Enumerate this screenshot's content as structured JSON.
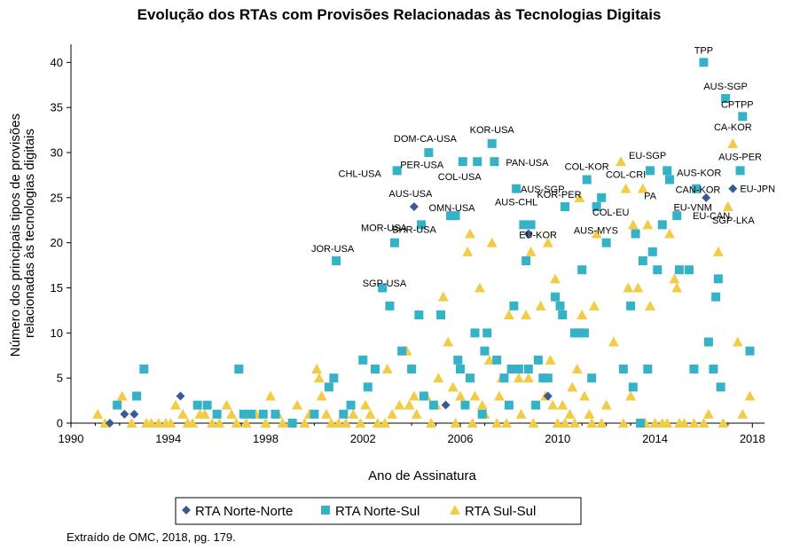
{
  "chart_data": {
    "type": "scatter",
    "title": "Evolução dos RTAs com Provisões Relacionadas às Tecnologias Digitais",
    "xlabel": "Ano de Assinatura",
    "ylabel_lines": [
      "Número dos principais tipos de provisões",
      "relacionadas às tecnologias digitais"
    ],
    "xlim": [
      1990,
      2018.5
    ],
    "ylim": [
      0,
      42
    ],
    "xticks": [
      "1990",
      "1994",
      "1998",
      "2002",
      "2006",
      "2010",
      "2014",
      "2018"
    ],
    "yticks": [
      "0",
      "5",
      "10",
      "15",
      "20",
      "25",
      "30",
      "35",
      "40"
    ],
    "grid": false,
    "legend_position": "bottom",
    "colors": {
      "Norte-Norte": "#3a5a95",
      "Norte-Sul": "#35b2c8",
      "Sul-Sul": "#f2cc47"
    },
    "series": [
      {
        "name": "RTA Norte-Norte",
        "marker": "diamond",
        "points": [
          [
            1991.6,
            0
          ],
          [
            1992.2,
            1
          ],
          [
            1992.6,
            1
          ],
          [
            1994.5,
            3
          ],
          [
            2004.1,
            24
          ],
          [
            2005.4,
            2
          ],
          [
            2008.8,
            21
          ],
          [
            2009.6,
            3
          ],
          [
            2016.1,
            25
          ],
          [
            2017.2,
            26
          ]
        ]
      },
      {
        "name": "RTA Norte-Sul",
        "marker": "square",
        "points": [
          [
            1991.9,
            2
          ],
          [
            1992.7,
            3
          ],
          [
            1993.0,
            6
          ],
          [
            1995.2,
            2
          ],
          [
            1995.6,
            2
          ],
          [
            1996.0,
            1
          ],
          [
            1996.9,
            6
          ],
          [
            1997.1,
            1
          ],
          [
            1997.4,
            1
          ],
          [
            1997.9,
            1
          ],
          [
            1998.4,
            1
          ],
          [
            1999.1,
            0
          ],
          [
            2000.0,
            1
          ],
          [
            2000.6,
            4
          ],
          [
            2000.8,
            5
          ],
          [
            2000.9,
            18
          ],
          [
            2001.2,
            1
          ],
          [
            2001.5,
            2
          ],
          [
            2002.0,
            7
          ],
          [
            2002.2,
            4
          ],
          [
            2002.5,
            6
          ],
          [
            2002.8,
            15
          ],
          [
            2003.1,
            13
          ],
          [
            2003.3,
            20
          ],
          [
            2003.4,
            28
          ],
          [
            2003.6,
            8
          ],
          [
            2004.0,
            6
          ],
          [
            2004.3,
            12
          ],
          [
            2004.4,
            22
          ],
          [
            2004.5,
            3
          ],
          [
            2004.7,
            30
          ],
          [
            2004.9,
            2
          ],
          [
            2005.2,
            12
          ],
          [
            2005.6,
            23
          ],
          [
            2005.8,
            23
          ],
          [
            2005.9,
            7
          ],
          [
            2006.0,
            6
          ],
          [
            2006.1,
            29
          ],
          [
            2006.2,
            2
          ],
          [
            2006.4,
            5
          ],
          [
            2006.6,
            10
          ],
          [
            2006.7,
            29
          ],
          [
            2006.9,
            1
          ],
          [
            2007.0,
            8
          ],
          [
            2007.1,
            10
          ],
          [
            2007.3,
            31
          ],
          [
            2007.4,
            29
          ],
          [
            2007.5,
            7
          ],
          [
            2007.8,
            5
          ],
          [
            2008.0,
            2
          ],
          [
            2008.1,
            6
          ],
          [
            2008.2,
            13
          ],
          [
            2008.3,
            26
          ],
          [
            2008.4,
            6
          ],
          [
            2008.6,
            22
          ],
          [
            2008.7,
            18
          ],
          [
            2008.8,
            6
          ],
          [
            2008.9,
            22
          ],
          [
            2009.1,
            2
          ],
          [
            2009.2,
            7
          ],
          [
            2009.4,
            5
          ],
          [
            2009.6,
            5
          ],
          [
            2009.9,
            14
          ],
          [
            2010.1,
            13
          ],
          [
            2010.2,
            12
          ],
          [
            2010.3,
            24
          ],
          [
            2010.7,
            10
          ],
          [
            2010.9,
            10
          ],
          [
            2011.0,
            17
          ],
          [
            2011.1,
            10
          ],
          [
            2011.2,
            27
          ],
          [
            2011.4,
            5
          ],
          [
            2011.6,
            24
          ],
          [
            2011.8,
            25
          ],
          [
            2012.0,
            20
          ],
          [
            2012.7,
            6
          ],
          [
            2013.0,
            13
          ],
          [
            2013.1,
            4
          ],
          [
            2013.2,
            21
          ],
          [
            2013.4,
            0
          ],
          [
            2013.5,
            18
          ],
          [
            2013.7,
            6
          ],
          [
            2013.8,
            28
          ],
          [
            2013.9,
            19
          ],
          [
            2014.1,
            17
          ],
          [
            2014.3,
            22
          ],
          [
            2014.5,
            28
          ],
          [
            2014.6,
            27
          ],
          [
            2014.9,
            23
          ],
          [
            2015.0,
            17
          ],
          [
            2015.4,
            17
          ],
          [
            2015.6,
            6
          ],
          [
            2015.7,
            26
          ],
          [
            2016.0,
            40
          ],
          [
            2016.2,
            9
          ],
          [
            2016.4,
            6
          ],
          [
            2016.5,
            14
          ],
          [
            2016.6,
            16
          ],
          [
            2016.7,
            4
          ],
          [
            2016.9,
            36
          ],
          [
            2017.6,
            34
          ],
          [
            2017.5,
            28
          ],
          [
            2017.9,
            8
          ]
        ]
      },
      {
        "name": "RTA Sul-Sul",
        "marker": "triangle",
        "points": [
          [
            1991.1,
            1
          ],
          [
            1991.4,
            0
          ],
          [
            1992.1,
            3
          ],
          [
            1992.5,
            0
          ],
          [
            1993.1,
            0
          ],
          [
            1993.3,
            0
          ],
          [
            1993.6,
            0
          ],
          [
            1993.9,
            0
          ],
          [
            1994.1,
            0
          ],
          [
            1994.3,
            2
          ],
          [
            1994.6,
            1
          ],
          [
            1994.8,
            0
          ],
          [
            1995.0,
            0
          ],
          [
            1995.3,
            1
          ],
          [
            1995.5,
            1
          ],
          [
            1995.8,
            0
          ],
          [
            1996.1,
            0
          ],
          [
            1996.4,
            2
          ],
          [
            1996.6,
            1
          ],
          [
            1996.8,
            0
          ],
          [
            1997.2,
            0
          ],
          [
            1997.6,
            1
          ],
          [
            1998.0,
            0
          ],
          [
            1998.2,
            3
          ],
          [
            1998.5,
            1
          ],
          [
            1998.7,
            0
          ],
          [
            1999.0,
            0
          ],
          [
            1999.3,
            2
          ],
          [
            1999.6,
            0
          ],
          [
            1999.8,
            1
          ],
          [
            2000.1,
            6
          ],
          [
            2000.2,
            5
          ],
          [
            2000.3,
            3
          ],
          [
            2000.5,
            1
          ],
          [
            2000.7,
            0
          ],
          [
            2001.0,
            0
          ],
          [
            2001.3,
            0
          ],
          [
            2001.6,
            1
          ],
          [
            2001.9,
            0
          ],
          [
            2002.1,
            2
          ],
          [
            2002.3,
            1
          ],
          [
            2002.6,
            0
          ],
          [
            2002.9,
            0
          ],
          [
            2003.0,
            6
          ],
          [
            2003.2,
            1
          ],
          [
            2003.5,
            2
          ],
          [
            2003.7,
            8
          ],
          [
            2003.8,
            8
          ],
          [
            2003.9,
            2
          ],
          [
            2004.1,
            3
          ],
          [
            2004.2,
            1
          ],
          [
            2004.6,
            3
          ],
          [
            2004.8,
            0
          ],
          [
            2005.0,
            2
          ],
          [
            2005.1,
            5
          ],
          [
            2005.3,
            14
          ],
          [
            2005.5,
            9
          ],
          [
            2005.7,
            4
          ],
          [
            2005.8,
            0
          ],
          [
            2006.0,
            3
          ],
          [
            2006.3,
            19
          ],
          [
            2006.4,
            21
          ],
          [
            2006.5,
            0
          ],
          [
            2006.6,
            3
          ],
          [
            2006.8,
            15
          ],
          [
            2006.9,
            2
          ],
          [
            2007.0,
            1
          ],
          [
            2007.2,
            7
          ],
          [
            2007.3,
            20
          ],
          [
            2007.5,
            0
          ],
          [
            2007.6,
            3
          ],
          [
            2007.7,
            5
          ],
          [
            2007.9,
            0
          ],
          [
            2008.0,
            12
          ],
          [
            2008.4,
            5
          ],
          [
            2008.5,
            1
          ],
          [
            2008.7,
            12
          ],
          [
            2008.8,
            5
          ],
          [
            2008.9,
            19
          ],
          [
            2009.0,
            0
          ],
          [
            2009.3,
            13
          ],
          [
            2009.5,
            3
          ],
          [
            2009.6,
            20
          ],
          [
            2009.7,
            7
          ],
          [
            2009.8,
            2
          ],
          [
            2009.9,
            16
          ],
          [
            2010.0,
            0
          ],
          [
            2010.2,
            2
          ],
          [
            2010.3,
            0
          ],
          [
            2010.5,
            1
          ],
          [
            2010.6,
            4
          ],
          [
            2010.7,
            0
          ],
          [
            2010.8,
            6
          ],
          [
            2010.9,
            25
          ],
          [
            2011.0,
            12
          ],
          [
            2011.1,
            3
          ],
          [
            2011.3,
            1
          ],
          [
            2011.4,
            0
          ],
          [
            2011.5,
            13
          ],
          [
            2011.6,
            21
          ],
          [
            2011.8,
            0
          ],
          [
            2012.0,
            2
          ],
          [
            2012.3,
            9
          ],
          [
            2012.6,
            29
          ],
          [
            2012.7,
            0
          ],
          [
            2012.8,
            26
          ],
          [
            2012.9,
            15
          ],
          [
            2013.0,
            3
          ],
          [
            2013.1,
            22
          ],
          [
            2013.3,
            15
          ],
          [
            2013.5,
            26
          ],
          [
            2013.6,
            0
          ],
          [
            2013.7,
            22
          ],
          [
            2013.8,
            13
          ],
          [
            2014.0,
            0
          ],
          [
            2014.3,
            0
          ],
          [
            2014.5,
            0
          ],
          [
            2014.6,
            21
          ],
          [
            2014.8,
            16
          ],
          [
            2014.9,
            15
          ],
          [
            2015.0,
            0
          ],
          [
            2015.2,
            0
          ],
          [
            2015.6,
            0
          ],
          [
            2016.0,
            0
          ],
          [
            2016.2,
            1
          ],
          [
            2016.6,
            19
          ],
          [
            2016.8,
            0
          ],
          [
            2017.0,
            24
          ],
          [
            2017.2,
            31
          ],
          [
            2017.4,
            9
          ],
          [
            2017.6,
            1
          ],
          [
            2017.9,
            3
          ]
        ]
      }
    ],
    "annotations": [
      {
        "text": "TPP",
        "x": 2016.0,
        "y": 40
      },
      {
        "text": "AUS-SGP",
        "x": 2016.9,
        "y": 36
      },
      {
        "text": "CPTPP",
        "x": 2017.6,
        "y": 34
      },
      {
        "text": "CA-KOR",
        "x": 2017.2,
        "y": 31
      },
      {
        "text": "AUS-PER",
        "x": 2017.5,
        "y": 28
      },
      {
        "text": "EU-JPN",
        "x": 2017.2,
        "y": 26
      },
      {
        "text": "SGP-LKA",
        "x": 2017.0,
        "y": 24
      },
      {
        "text": "EU-SGP",
        "x": 2012.6,
        "y": 29
      },
      {
        "text": "AUS-KOR",
        "x": 2014.5,
        "y": 28
      },
      {
        "text": "CAN-KOR",
        "x": 2014.6,
        "y": 27
      },
      {
        "text": "COL-KOR",
        "x": 2011.2,
        "y": 27
      },
      {
        "text": "COL-CRI",
        "x": 2012.8,
        "y": 26
      },
      {
        "text": "PA",
        "x": 2013.8,
        "y": 26
      },
      {
        "text": "EU-VNM",
        "x": 2015.7,
        "y": 26
      },
      {
        "text": "EU-CAN",
        "x": 2016.1,
        "y": 25
      },
      {
        "text": "AUS-SGP",
        "x": 2009.6,
        "y": 25
      },
      {
        "text": "KOR-PER",
        "x": 2010.9,
        "y": 25
      },
      {
        "text": "COL-EU",
        "x": 2011.6,
        "y": 24
      },
      {
        "text": "AUS-MYS",
        "x": 2012.3,
        "y": 22
      },
      {
        "text": "KOR-USA",
        "x": 2007.3,
        "y": 31
      },
      {
        "text": "PAN-USA",
        "x": 2007.4,
        "y": 29
      },
      {
        "text": "COL-USA",
        "x": 2006.7,
        "y": 29
      },
      {
        "text": "AUS-CHL",
        "x": 2008.3,
        "y": 26
      },
      {
        "text": "EU-KOR",
        "x": 2008.9,
        "y": 22
      },
      {
        "text": "DOM-CA-USA",
        "x": 2004.7,
        "y": 30
      },
      {
        "text": "PER-USA",
        "x": 2003.4,
        "y": 28
      },
      {
        "text": "CHL-USA",
        "x": 2003.4,
        "y": 28
      },
      {
        "text": "AUS-USA",
        "x": 2004.1,
        "y": 24
      },
      {
        "text": "OMN-USA",
        "x": 2005.8,
        "y": 23
      },
      {
        "text": "BHR-USA",
        "x": 2004.4,
        "y": 22
      },
      {
        "text": "MOR-USA",
        "x": 2003.3,
        "y": 20
      },
      {
        "text": "SGP-USA",
        "x": 2003.1,
        "y": 18
      },
      {
        "text": "JOR-USA",
        "x": 2000.9,
        "y": 18
      }
    ]
  },
  "legend": {
    "items": [
      {
        "label": "RTA Norte-Norte",
        "marker": "diamond",
        "color": "#3a5a95"
      },
      {
        "label": "RTA Norte-Sul",
        "marker": "square",
        "color": "#35b2c8"
      },
      {
        "label": "RTA Sul-Sul",
        "marker": "triangle",
        "color": "#f2cc47"
      }
    ]
  },
  "source_text": "Extraído de OMC, 2018, pg. 179."
}
